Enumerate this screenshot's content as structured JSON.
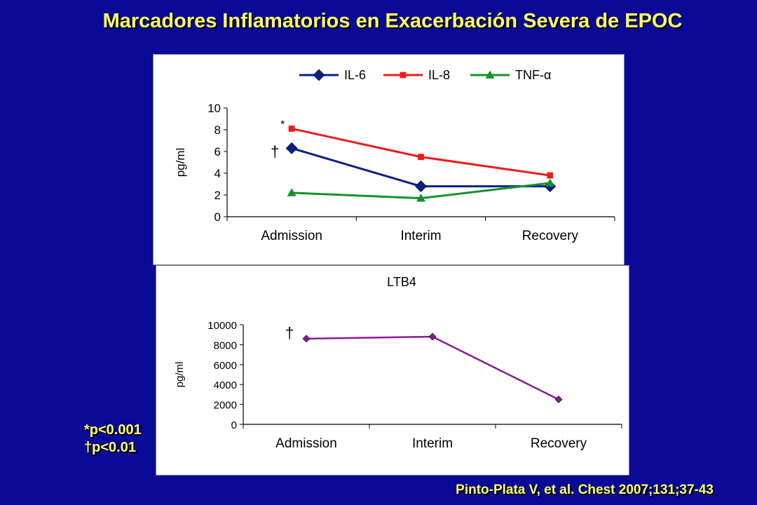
{
  "slide": {
    "title": "Marcadores Inflamatorios en Exacerbación Severa de EPOC",
    "footnotes": [
      "*p<0.001",
      "†p<0.01"
    ],
    "citation": "Pinto-Plata V, et al. Chest 2007;131;37-43"
  },
  "chart_data": [
    {
      "type": "line",
      "title": "",
      "ylabel": "pg/ml",
      "xlabel": "",
      "categories": [
        "Admission",
        "Interim",
        "Recovery"
      ],
      "ylim": [
        0,
        10
      ],
      "yticks": [
        0,
        2,
        4,
        6,
        8,
        10
      ],
      "grid": false,
      "legend": "top",
      "series": [
        {
          "name": "IL-6",
          "values": [
            6.3,
            2.8,
            2.8
          ],
          "color": "#0b1f8a",
          "marker": "diamond"
        },
        {
          "name": "IL-8",
          "values": [
            8.1,
            5.5,
            3.8
          ],
          "color": "#ee1c1c",
          "marker": "square"
        },
        {
          "name": "TNF-α",
          "values": [
            2.2,
            1.7,
            3.1
          ],
          "color": "#13922a",
          "marker": "triangle"
        }
      ],
      "annotations": [
        "*",
        "†"
      ]
    },
    {
      "type": "line",
      "title": "LTB4",
      "ylabel": "pg/ml",
      "xlabel": "",
      "categories": [
        "Admission",
        "Interim",
        "Recovery"
      ],
      "ylim": [
        0,
        10000
      ],
      "yticks": [
        0,
        2000,
        4000,
        6000,
        8000,
        10000
      ],
      "grid": false,
      "legend": "none",
      "series": [
        {
          "values": [
            8600,
            8800,
            2500
          ],
          "color": "#8a1a9a",
          "marker": "diamond"
        }
      ],
      "annotations": [
        "†"
      ]
    }
  ]
}
